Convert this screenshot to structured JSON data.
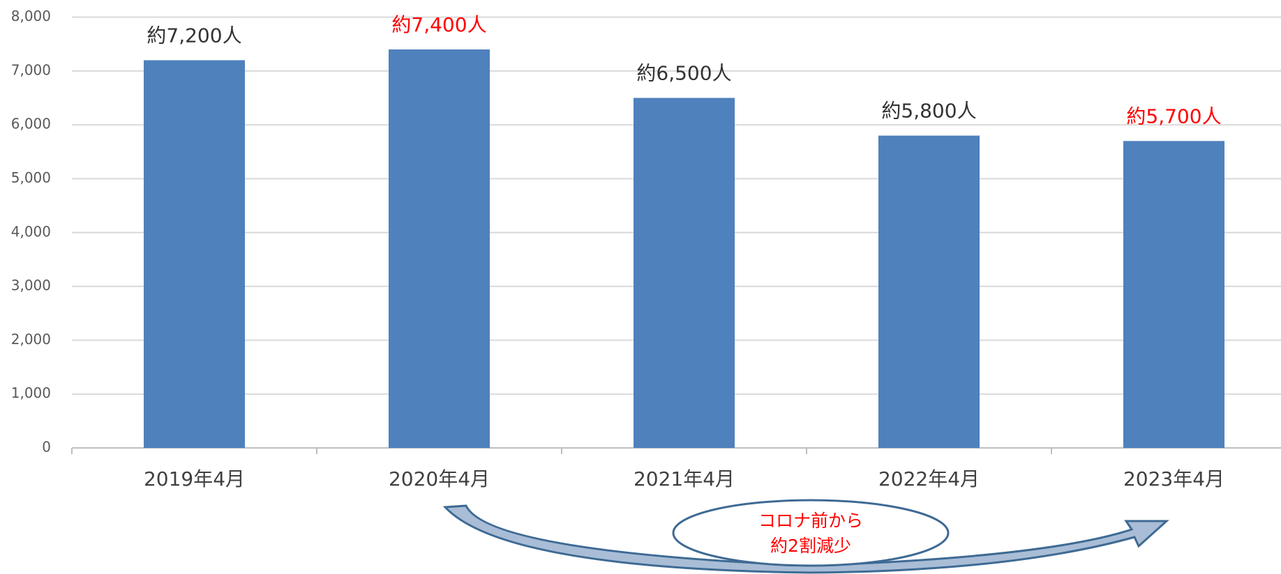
{
  "chart_data": {
    "type": "bar",
    "categories": [
      "2019年4月",
      "2020年4月",
      "2021年4月",
      "2022年4月",
      "2023年4月"
    ],
    "values": [
      7200,
      7400,
      6500,
      5800,
      5700
    ],
    "value_labels": [
      "約7,200人",
      "約7,400人",
      "約6,500人",
      "約5,800人",
      "約5,700人"
    ],
    "value_label_colors": [
      "#333333",
      "#ff0000",
      "#333333",
      "#333333",
      "#ff0000"
    ],
    "color": "#4f81bd",
    "ylim": [
      0,
      8000
    ],
    "yticks": [
      0,
      {
        "value": 1000,
        "label": "1,000"
      },
      {
        "value": 2000,
        "label": "2,000"
      },
      {
        "value": 3000,
        "label": "3,000"
      },
      {
        "value": 4000,
        "label": "4,000"
      },
      {
        "value": 5000,
        "label": "5,000"
      },
      {
        "value": 6000,
        "label": "6,000"
      },
      {
        "value": 7000,
        "label": "7,000"
      },
      {
        "value": 8000,
        "label": "8,000"
      }
    ],
    "grid": true,
    "annotation": [
      "コロナ前から",
      "約2割減少"
    ]
  }
}
